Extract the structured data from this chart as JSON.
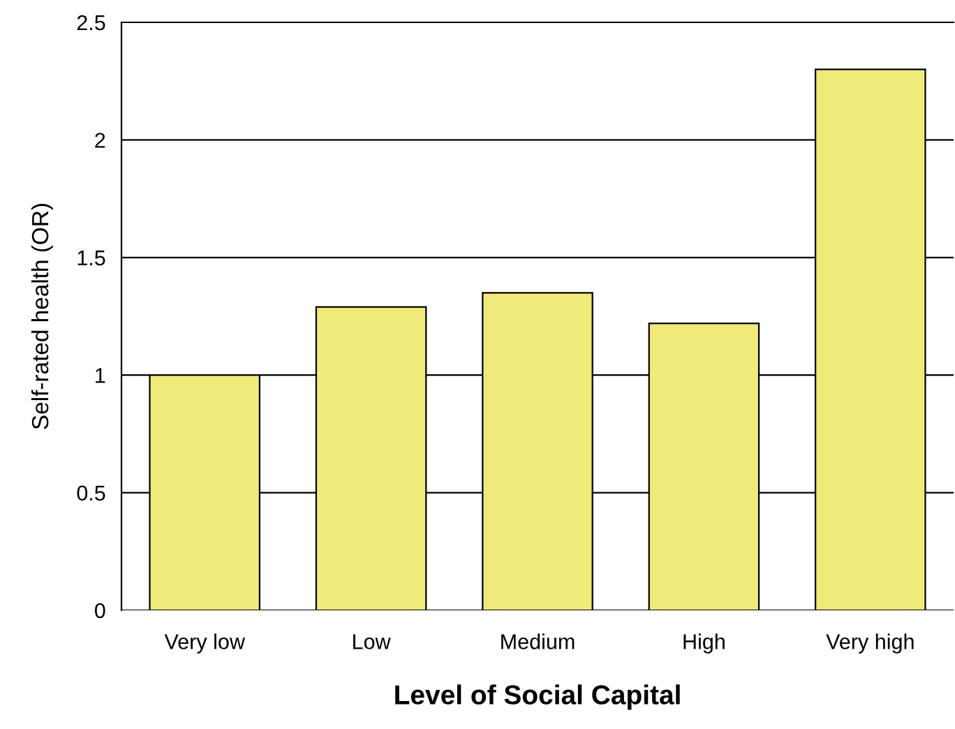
{
  "chart_data": {
    "type": "bar",
    "xlabel": "Level of Social Capital",
    "ylabel": "Self-rated health (OR)",
    "categories": [
      "Very low",
      "Low",
      "Medium",
      "High",
      "Very high"
    ],
    "values": [
      1.0,
      1.29,
      1.35,
      1.22,
      2.3
    ],
    "color": "#f0ea7a",
    "ylim": [
      0,
      2.5
    ],
    "yticks": [
      0,
      0.5,
      1,
      1.5,
      2,
      2.5
    ],
    "grid": "y"
  }
}
